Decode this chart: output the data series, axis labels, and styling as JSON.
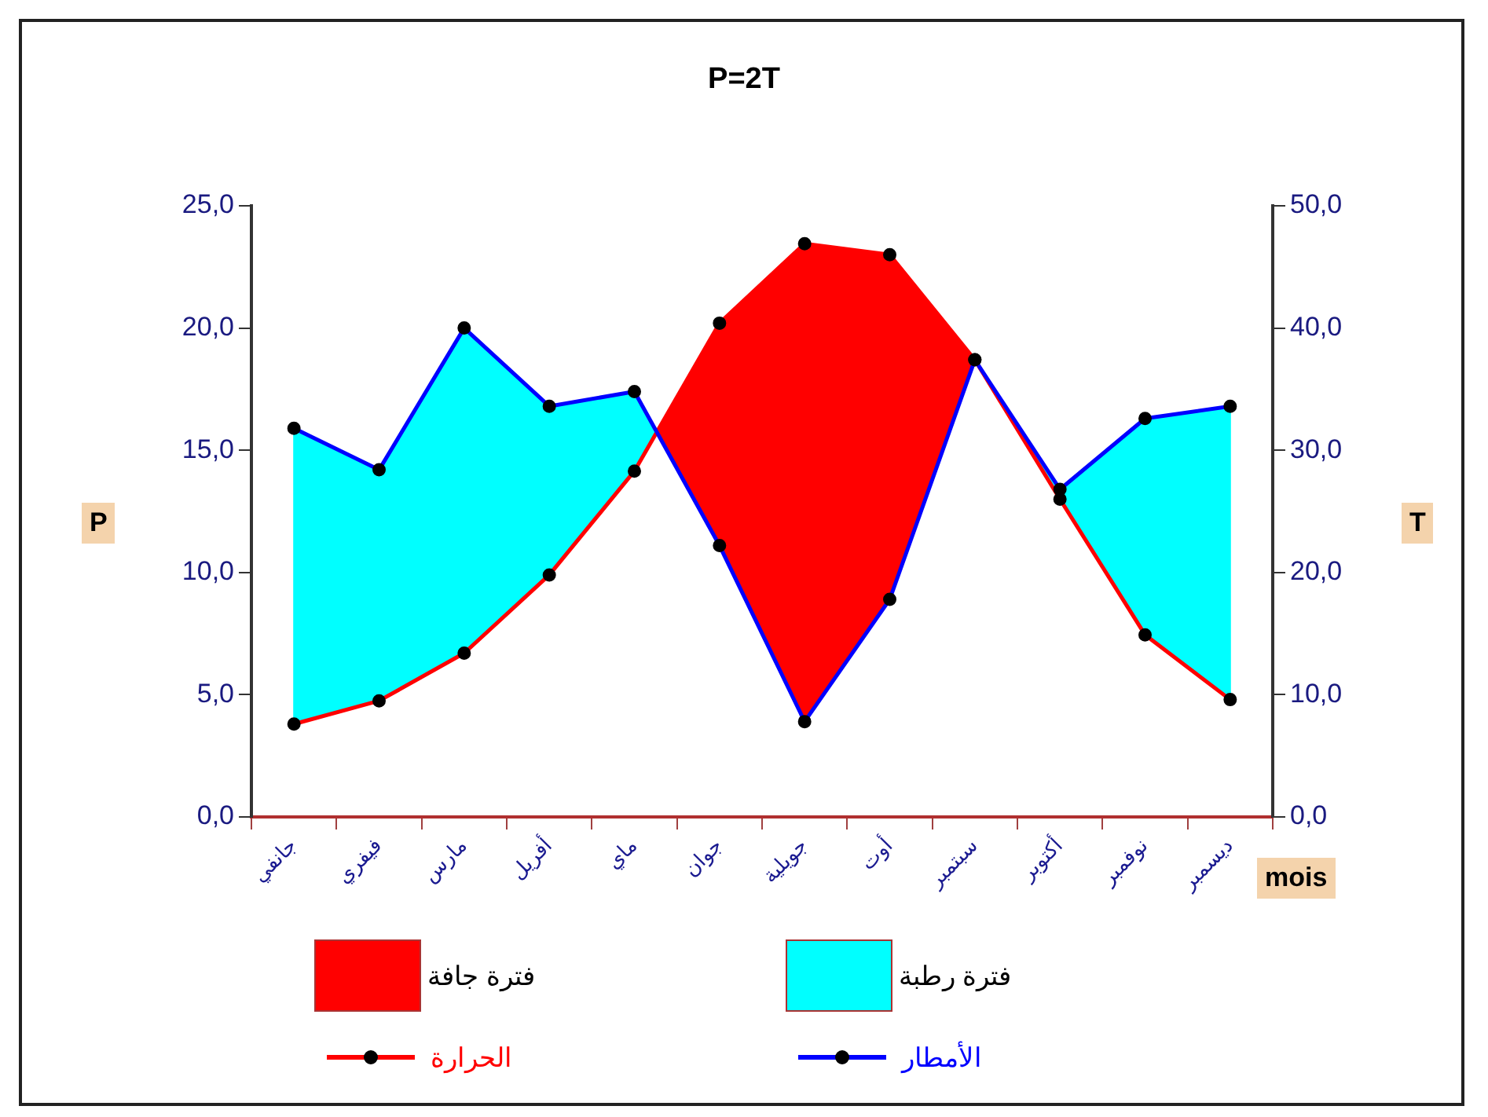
{
  "chart_data": {
    "type": "line",
    "title": "P=2T",
    "xlabel": "mois",
    "ylabel": "P",
    "y2label": "T",
    "categories": [
      "جانفي",
      "فيفري",
      "مارس",
      "أفريل",
      "ماي",
      "جوان",
      "جويلية",
      "أوت",
      "سبتمبر",
      "أكتوبر",
      "نوفمبر",
      "ديسمبر"
    ],
    "series": [
      {
        "name": "الأمطار",
        "type": "line",
        "color": "#0000ff",
        "values": [
          15.9,
          14.2,
          20.0,
          16.8,
          17.4,
          11.1,
          3.9,
          8.9,
          18.7,
          13.4,
          16.3,
          16.8
        ]
      },
      {
        "name": "الحرارة",
        "type": "line",
        "axis": "y2",
        "color": "#ff0000",
        "values": [
          7.6,
          9.5,
          13.4,
          19.8,
          28.3,
          40.4,
          46.9,
          46.0,
          37.4,
          26.0,
          14.9,
          9.6
        ]
      }
    ],
    "annotations": [
      "فترة جافة",
      "فترة رطبة"
    ],
    "ylim": [
      0,
      25
    ],
    "yticks": [
      {
        "value": 0,
        "label": "0,0"
      },
      {
        "value": 5,
        "label": "5,0"
      },
      {
        "value": 10,
        "label": "10,0"
      },
      {
        "value": 15,
        "label": "15,0"
      },
      {
        "value": 20,
        "label": "20,0"
      },
      {
        "value": 25,
        "label": "25,0"
      }
    ],
    "y2lim": [
      0,
      50
    ],
    "y2ticks": [
      {
        "value": 0,
        "label": "0,0"
      },
      {
        "value": 10,
        "label": "10,0"
      },
      {
        "value": 20,
        "label": "20,0"
      },
      {
        "value": 30,
        "label": "30,0"
      },
      {
        "value": 40,
        "label": "40,0"
      },
      {
        "value": 50,
        "label": "50,0"
      }
    ],
    "marker": "circle",
    "legend": "bottom"
  }
}
